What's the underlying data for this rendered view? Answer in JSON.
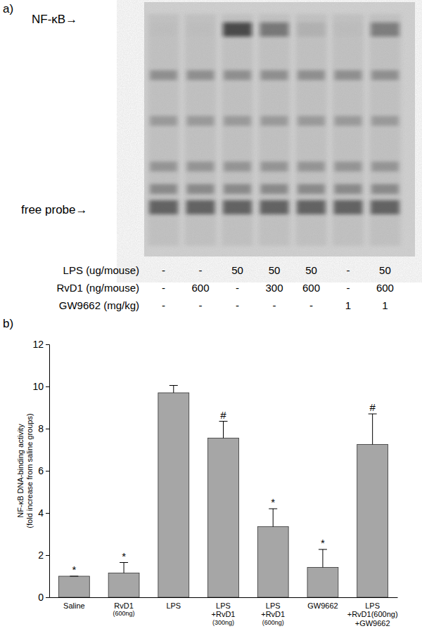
{
  "chart_data": [
    {
      "type": "gel",
      "panel_label": "a)",
      "band_labels": [
        "NF-κB→",
        "free probe→"
      ],
      "treatments": [
        {
          "label": "LPS (ug/mouse)",
          "values": [
            "-",
            "-",
            "50",
            "50",
            "50",
            "-",
            "50"
          ]
        },
        {
          "label": "RvD1 (ng/mouse)",
          "values": [
            "-",
            "600",
            "-",
            "300",
            "600",
            "-",
            "600"
          ]
        },
        {
          "label": "GW9662 (mg/kg)",
          "values": [
            "-",
            "-",
            "-",
            "-",
            "-",
            "1",
            "1"
          ]
        }
      ]
    },
    {
      "type": "bar",
      "panel_label": "b)",
      "y_label": "NF-κB DNA-binding activity\n(fold increase from saline groups)",
      "categories": [
        "Saline",
        "RvD1\n(600ng)",
        "LPS",
        "LPS\n+RvD1\n(300ng)",
        "LPS\n+RvD1\n(600ng)",
        "GW9662",
        "LPS\n+RvD1(600ng)\n+GW9662"
      ],
      "values": [
        1.0,
        1.15,
        9.7,
        7.55,
        3.35,
        1.42,
        7.25
      ],
      "errors": [
        0,
        0.5,
        0.35,
        0.8,
        0.85,
        0.85,
        1.45
      ],
      "significance": [
        "*",
        "*",
        null,
        "#",
        "*",
        "*",
        "#"
      ],
      "color": "#a6a6a6",
      "ylim": [
        0,
        12
      ],
      "yticks": [
        0,
        2,
        4,
        6,
        8,
        10,
        12
      ],
      "grid": false
    }
  ]
}
